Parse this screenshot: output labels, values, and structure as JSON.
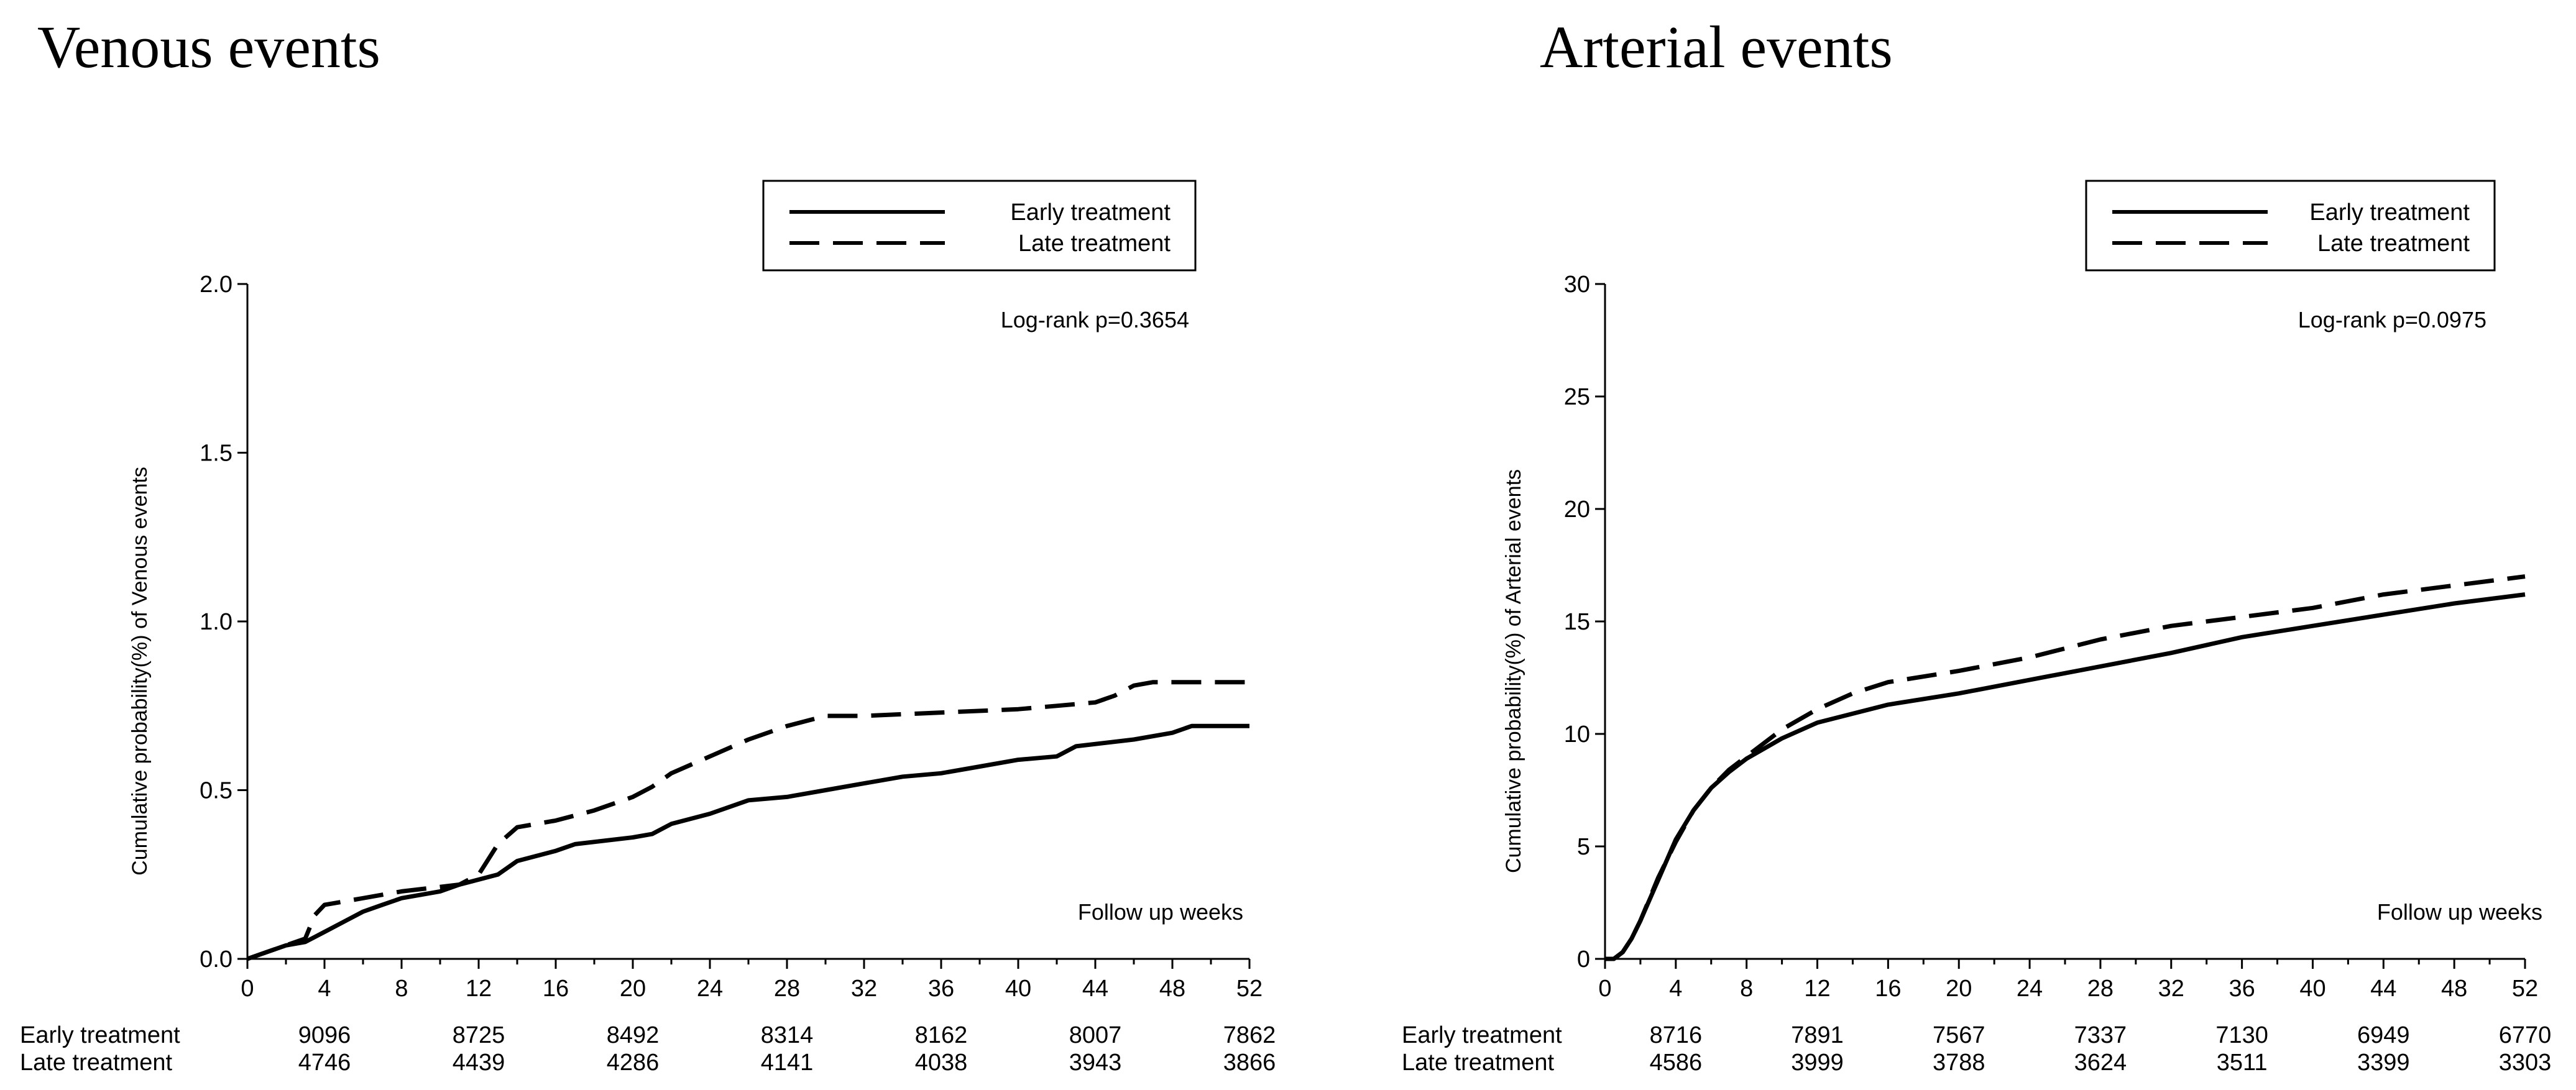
{
  "chart_data": [
    {
      "type": "line",
      "title": "Venous events",
      "ylabel": "Cumulative probability(%) of  Venous events",
      "xlabel": "Follow up weeks",
      "xlim": [
        0,
        52
      ],
      "ylim": [
        0,
        2.0
      ],
      "x_ticks": [
        "0",
        "4",
        "8",
        "12",
        "16",
        "20",
        "24",
        "28",
        "32",
        "36",
        "40",
        "44",
        "48",
        "52"
      ],
      "y_ticks": [
        "0.0",
        "0.5",
        "1.0",
        "1.5",
        "2.0"
      ],
      "annotation": "Log-rank p=0.3654",
      "legend_position": "top-right",
      "series": [
        {
          "name": "Early treatment",
          "style": "solid",
          "points": [
            [
              0,
              0
            ],
            [
              1,
              0.02
            ],
            [
              2,
              0.04
            ],
            [
              3,
              0.05
            ],
            [
              4,
              0.08
            ],
            [
              5,
              0.11
            ],
            [
              6,
              0.14
            ],
            [
              7,
              0.16
            ],
            [
              8,
              0.18
            ],
            [
              10,
              0.2
            ],
            [
              11,
              0.22
            ],
            [
              13,
              0.25
            ],
            [
              14,
              0.29
            ],
            [
              16,
              0.32
            ],
            [
              17,
              0.34
            ],
            [
              20,
              0.36
            ],
            [
              21,
              0.37
            ],
            [
              22,
              0.4
            ],
            [
              24,
              0.43
            ],
            [
              26,
              0.47
            ],
            [
              28,
              0.48
            ],
            [
              30,
              0.5
            ],
            [
              32,
              0.52
            ],
            [
              34,
              0.54
            ],
            [
              36,
              0.55
            ],
            [
              38,
              0.57
            ],
            [
              40,
              0.59
            ],
            [
              42,
              0.6
            ],
            [
              43,
              0.63
            ],
            [
              46,
              0.65
            ],
            [
              48,
              0.67
            ],
            [
              49,
              0.69
            ],
            [
              52,
              0.69
            ]
          ]
        },
        {
          "name": "Late treatment",
          "style": "dashed",
          "points": [
            [
              0,
              0
            ],
            [
              3,
              0.06
            ],
            [
              3.5,
              0.13
            ],
            [
              4,
              0.16
            ],
            [
              6,
              0.18
            ],
            [
              8,
              0.2
            ],
            [
              11,
              0.22
            ],
            [
              12,
              0.25
            ],
            [
              13,
              0.34
            ],
            [
              14,
              0.39
            ],
            [
              16,
              0.41
            ],
            [
              18,
              0.44
            ],
            [
              20,
              0.48
            ],
            [
              21,
              0.51
            ],
            [
              22,
              0.55
            ],
            [
              24,
              0.6
            ],
            [
              26,
              0.65
            ],
            [
              28,
              0.69
            ],
            [
              30,
              0.72
            ],
            [
              32,
              0.72
            ],
            [
              36,
              0.73
            ],
            [
              40,
              0.74
            ],
            [
              42,
              0.75
            ],
            [
              44,
              0.76
            ],
            [
              45,
              0.78
            ],
            [
              46,
              0.81
            ],
            [
              47,
              0.82
            ],
            [
              52,
              0.82
            ]
          ]
        }
      ],
      "risk_table": {
        "x_positions": [
          4,
          12,
          20,
          28,
          36,
          44,
          52
        ],
        "rows": [
          {
            "label": "Early treatment",
            "values": [
              "9096",
              "8725",
              "8492",
              "8314",
              "8162",
              "8007",
              "7862"
            ]
          },
          {
            "label": "Late treatment",
            "values": [
              "4746",
              "4439",
              "4286",
              "4141",
              "4038",
              "3943",
              "3866"
            ]
          }
        ]
      }
    },
    {
      "type": "line",
      "title": "Arterial events",
      "ylabel": "Cumulative probability(%) of  Arterial events",
      "xlabel": "Follow up weeks",
      "xlim": [
        0,
        52
      ],
      "ylim": [
        0,
        30
      ],
      "x_ticks": [
        "0",
        "4",
        "8",
        "12",
        "16",
        "20",
        "24",
        "28",
        "32",
        "36",
        "40",
        "44",
        "48",
        "52"
      ],
      "y_ticks": [
        "0",
        "5",
        "10",
        "15",
        "20",
        "25",
        "30"
      ],
      "annotation": "Log-rank p=0.0975",
      "legend_position": "top-right",
      "series": [
        {
          "name": "Early treatment",
          "style": "solid",
          "points": [
            [
              0,
              0
            ],
            [
              0.5,
              0
            ],
            [
              1,
              0.3
            ],
            [
              1.5,
              0.9
            ],
            [
              2,
              1.7
            ],
            [
              3,
              3.5
            ],
            [
              4,
              5.3
            ],
            [
              5,
              6.6
            ],
            [
              6,
              7.6
            ],
            [
              7,
              8.3
            ],
            [
              8,
              8.9
            ],
            [
              10,
              9.8
            ],
            [
              12,
              10.5
            ],
            [
              14,
              10.9
            ],
            [
              16,
              11.3
            ],
            [
              20,
              11.8
            ],
            [
              24,
              12.4
            ],
            [
              28,
              13.0
            ],
            [
              32,
              13.6
            ],
            [
              36,
              14.3
            ],
            [
              40,
              14.8
            ],
            [
              44,
              15.3
            ],
            [
              48,
              15.8
            ],
            [
              52,
              16.2
            ]
          ]
        },
        {
          "name": "Late treatment",
          "style": "dashed",
          "points": [
            [
              0,
              0
            ],
            [
              0.5,
              0
            ],
            [
              1,
              0.3
            ],
            [
              1.5,
              0.9
            ],
            [
              2,
              1.7
            ],
            [
              3,
              3.6
            ],
            [
              4,
              5.2
            ],
            [
              5,
              6.6
            ],
            [
              6,
              7.6
            ],
            [
              7,
              8.4
            ],
            [
              8,
              9.0
            ],
            [
              10,
              10.2
            ],
            [
              12,
              11.1
            ],
            [
              14,
              11.8
            ],
            [
              16,
              12.3
            ],
            [
              20,
              12.8
            ],
            [
              24,
              13.4
            ],
            [
              28,
              14.2
            ],
            [
              32,
              14.8
            ],
            [
              36,
              15.2
            ],
            [
              40,
              15.6
            ],
            [
              44,
              16.2
            ],
            [
              48,
              16.6
            ],
            [
              52,
              17.0
            ]
          ]
        }
      ],
      "risk_table": {
        "x_positions": [
          4,
          12,
          20,
          28,
          36,
          44,
          52
        ],
        "rows": [
          {
            "label": "Early treatment",
            "values": [
              "8716",
              "7891",
              "7567",
              "7337",
              "7130",
              "6949",
              "6770"
            ]
          },
          {
            "label": "Late treatment",
            "values": [
              "4586",
              "3999",
              "3788",
              "3624",
              "3511",
              "3399",
              "3303"
            ]
          }
        ]
      }
    }
  ]
}
